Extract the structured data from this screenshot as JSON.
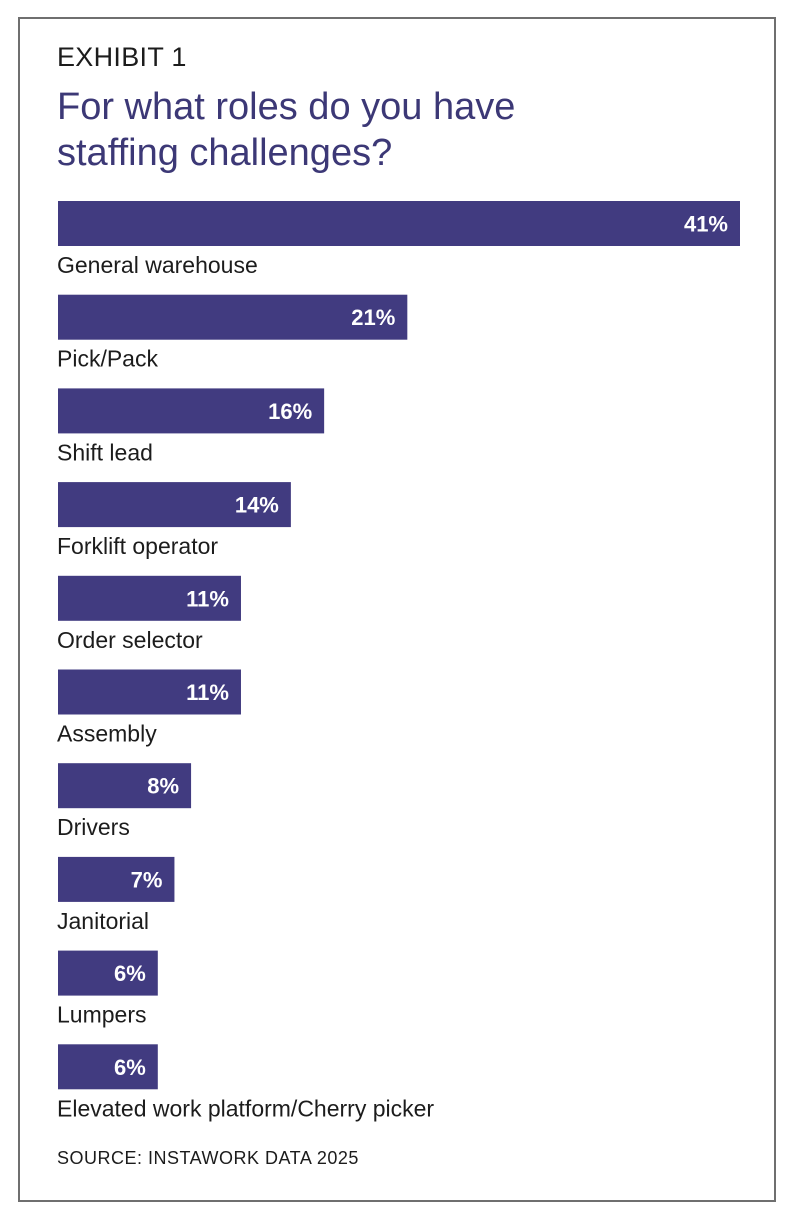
{
  "exhibit_label": "EXHIBIT 1",
  "chart_data": {
    "type": "bar",
    "orientation": "horizontal",
    "title": "For what roles do you have staffing challenges?",
    "categories": [
      "General warehouse",
      "Pick/Pack",
      "Shift lead",
      "Forklift operator",
      "Order selector",
      "Assembly",
      "Drivers",
      "Janitorial",
      "Lumpers",
      "Elevated work platform/Cherry picker"
    ],
    "values": [
      41,
      21,
      16,
      14,
      11,
      11,
      8,
      7,
      6,
      6
    ],
    "value_labels": [
      "41%",
      "21%",
      "16%",
      "14%",
      "11%",
      "11%",
      "8%",
      "7%",
      "6%",
      "6%"
    ],
    "unit": "%",
    "xlim": [
      0,
      41
    ],
    "grid": false,
    "legend": "none",
    "bar_color": "#413b80",
    "label_color": "#ffffff"
  },
  "source": "SOURCE: INSTAWORK DATA 2025"
}
